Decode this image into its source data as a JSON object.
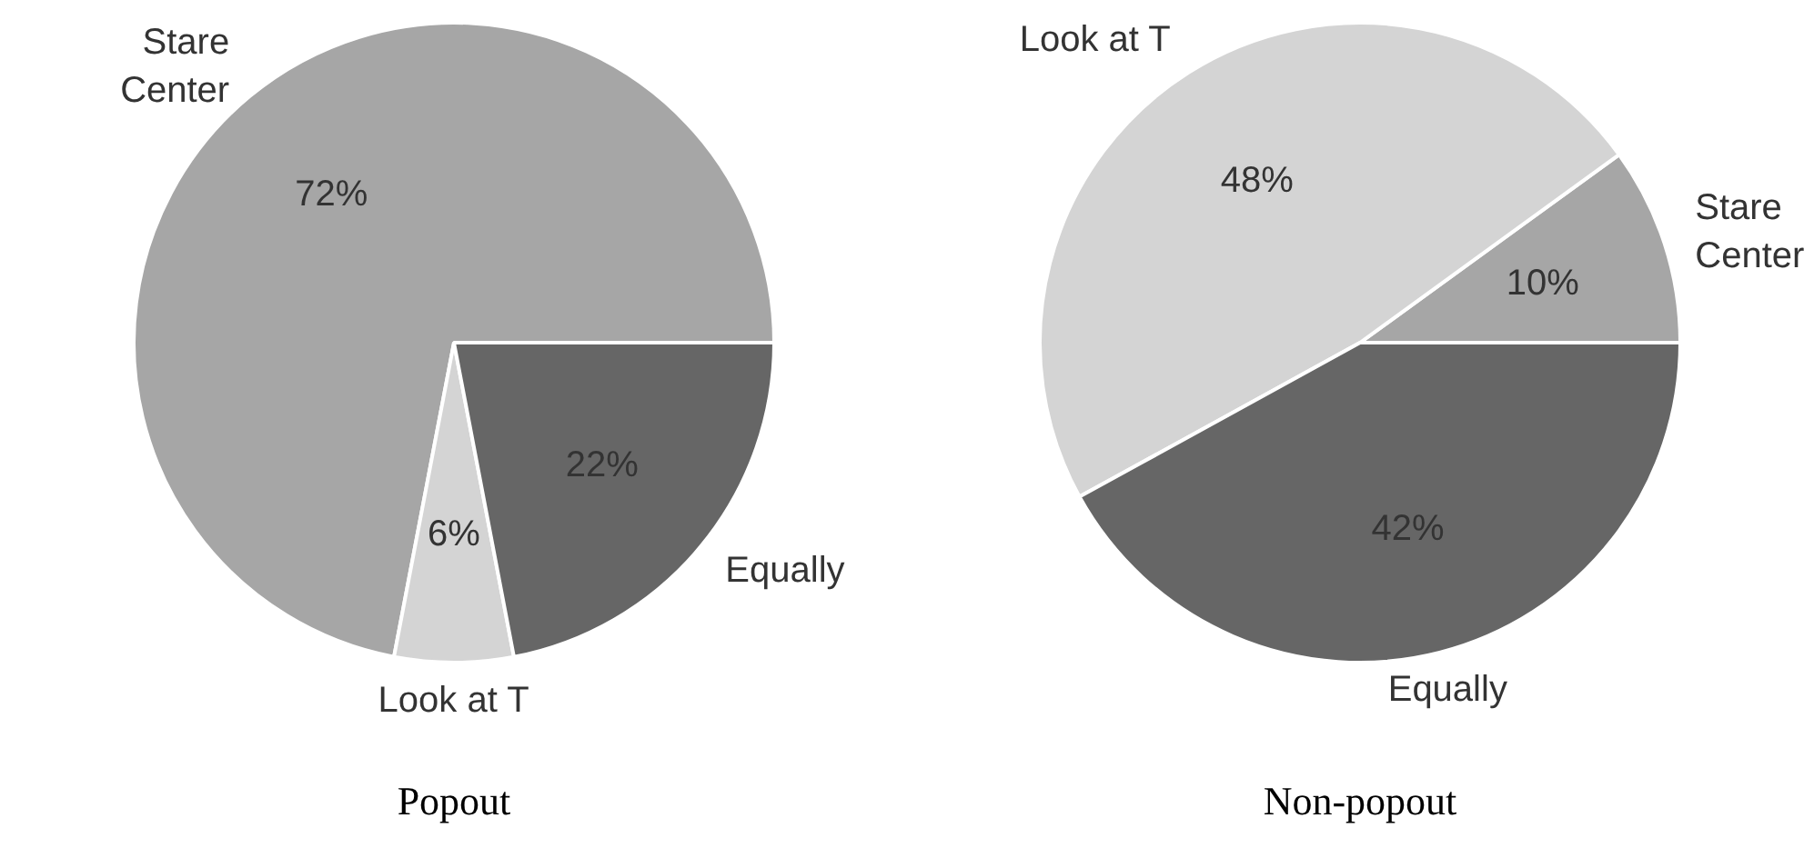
{
  "chart_data": [
    {
      "type": "pie",
      "title": "Popout",
      "categories": [
        "Stare Center",
        "Look at T",
        "Equally"
      ],
      "values": [
        72,
        6,
        22
      ],
      "value_labels": [
        "72%",
        "6%",
        "22%"
      ],
      "colors": [
        "#a6a6a6",
        "#d4d4d4",
        "#666666"
      ],
      "legend": false
    },
    {
      "type": "pie",
      "title": "Non-popout",
      "categories": [
        "Stare Center",
        "Look at T",
        "Equally"
      ],
      "values": [
        10,
        48,
        42
      ],
      "value_labels": [
        "10%",
        "48%",
        "42%"
      ],
      "colors": [
        "#a6a6a6",
        "#d4d4d4",
        "#666666"
      ],
      "legend": false
    }
  ]
}
